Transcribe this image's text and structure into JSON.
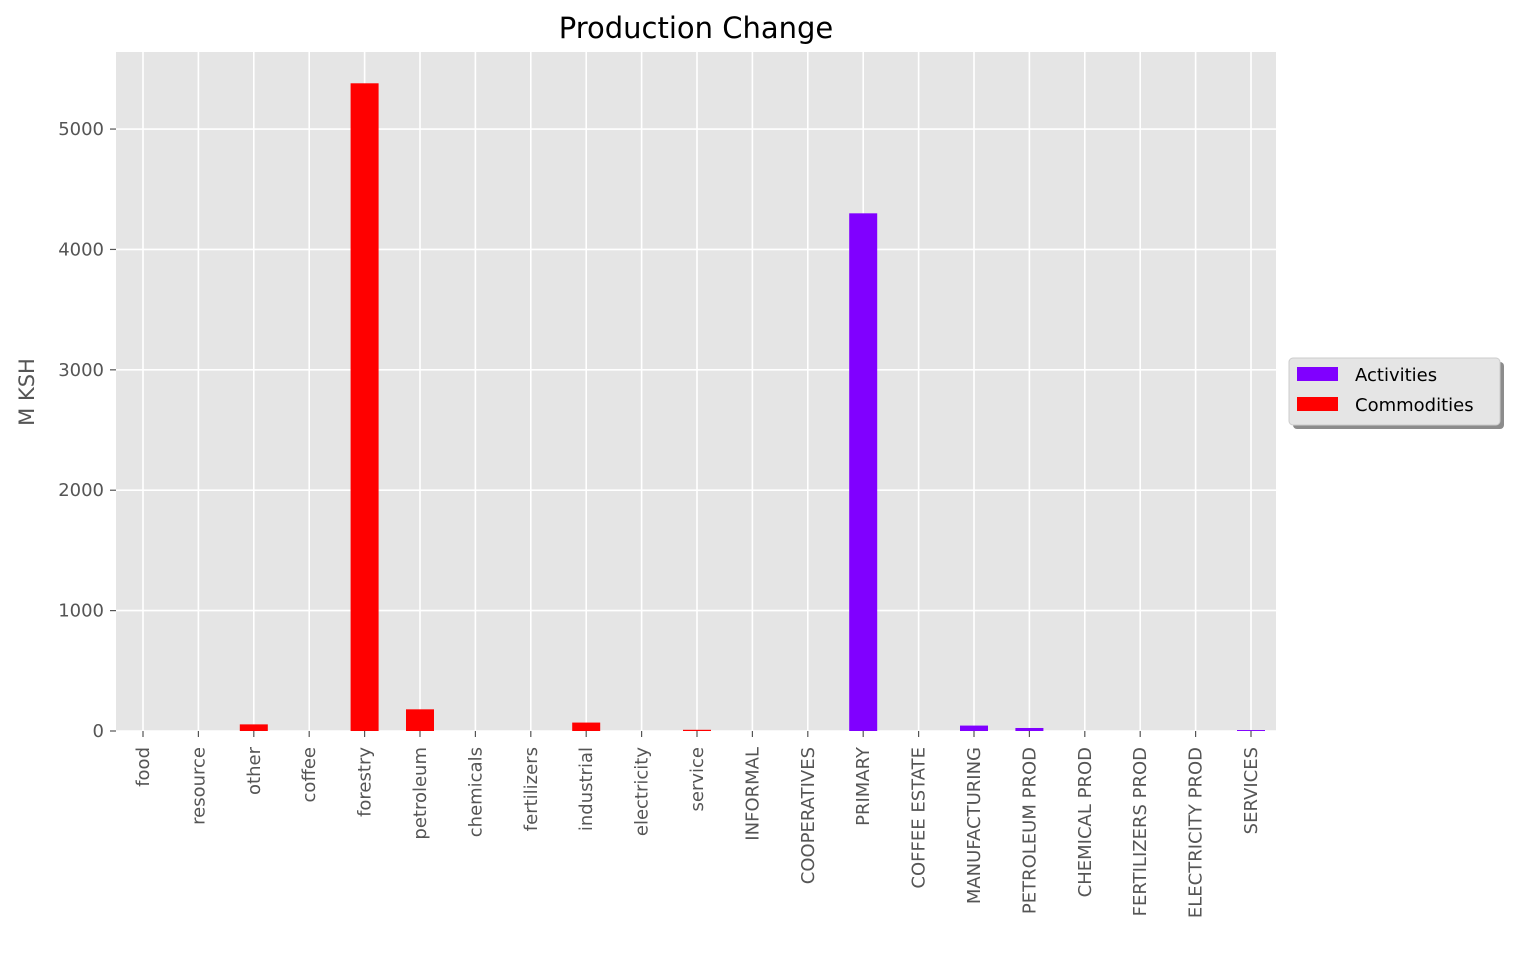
{
  "chart_data": {
    "type": "bar",
    "title": "Production Change",
    "xlabel": "",
    "ylabel": "M KSH",
    "ylim": [
      0,
      5640
    ],
    "yticks": [
      0,
      1000,
      2000,
      3000,
      4000,
      5000
    ],
    "grid": true,
    "legend_position": "right",
    "categories": [
      "food",
      "resource",
      "other",
      "coffee",
      "forestry",
      "petroleum",
      "chemicals",
      "fertilizers",
      "industrial",
      "electricity",
      "service",
      "INFORMAL",
      "COOPERATIVES",
      "PRIMARY",
      "COFFEE ESTATE",
      "MANUFACTURING",
      "PETROLEUM PROD",
      "CHEMICAL PROD",
      "FERTILIZERS PROD",
      "ELECTRICITY PROD",
      "SERVICES"
    ],
    "series": [
      {
        "name": "Activities",
        "color": "#8000ff",
        "values": [
          0,
          0,
          0,
          0,
          0,
          0,
          0,
          0,
          0,
          0,
          0,
          0,
          0,
          4300,
          0,
          45,
          25,
          0,
          0,
          0,
          8
        ]
      },
      {
        "name": "Commodities",
        "color": "#ff0000",
        "values": [
          0,
          0,
          55,
          0,
          5380,
          180,
          0,
          0,
          70,
          0,
          10,
          0,
          0,
          0,
          0,
          0,
          0,
          0,
          0,
          0,
          0
        ]
      }
    ]
  }
}
